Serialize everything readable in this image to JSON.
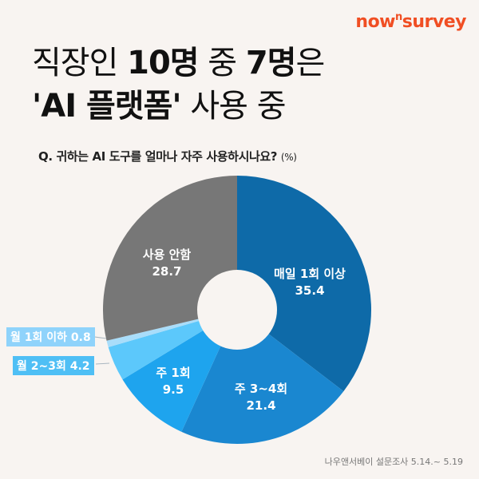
{
  "brand": {
    "logo_pre": "now",
    "logo_sup": "n",
    "logo_post": "survey",
    "color": "#f04e23"
  },
  "title": {
    "line1_a": "직장인 ",
    "line1_b": "10명",
    "line1_c": " 중 ",
    "line1_d": "7명",
    "line1_e": "은",
    "line2_a": "'AI 플랫폼'",
    "line2_b": " 사용 중"
  },
  "question": {
    "text": "Q. 귀하는 AI 도구를 얼마나 자주 사용하시나요?",
    "unit": "(%)"
  },
  "source": "나우앤서베이 설문조사 5.14.~ 5.19",
  "chart_data": {
    "type": "pie",
    "subtype": "donut",
    "title": "Q. 귀하는 AI 도구를 얼마나 자주 사용하시나요? (%)",
    "categories": [
      "매일 1회 이상",
      "주 3~4회",
      "주 1회",
      "월 2~3회",
      "월 1회 이하",
      "사용 안함"
    ],
    "values": [
      35.4,
      21.4,
      9.5,
      4.2,
      0.8,
      28.7
    ],
    "colors": [
      "#0e6aa8",
      "#1a87d0",
      "#1ea4ee",
      "#5cc8fb",
      "#a9ddfa",
      "#777777"
    ],
    "start_angle": "12 o'clock",
    "direction": "clockwise",
    "unit": "%"
  },
  "labels": {
    "daily": {
      "name": "매일 1회 이상",
      "value": "35.4"
    },
    "w34": {
      "name": "주 3~4회",
      "value": "21.4"
    },
    "w1": {
      "name": "주 1회",
      "value": "9.5"
    },
    "m23": {
      "text": "월 2~3회 4.2"
    },
    "m1": {
      "text": "월 1회 이하 0.8"
    },
    "none": {
      "name": "사용 안함",
      "value": "28.7"
    }
  }
}
